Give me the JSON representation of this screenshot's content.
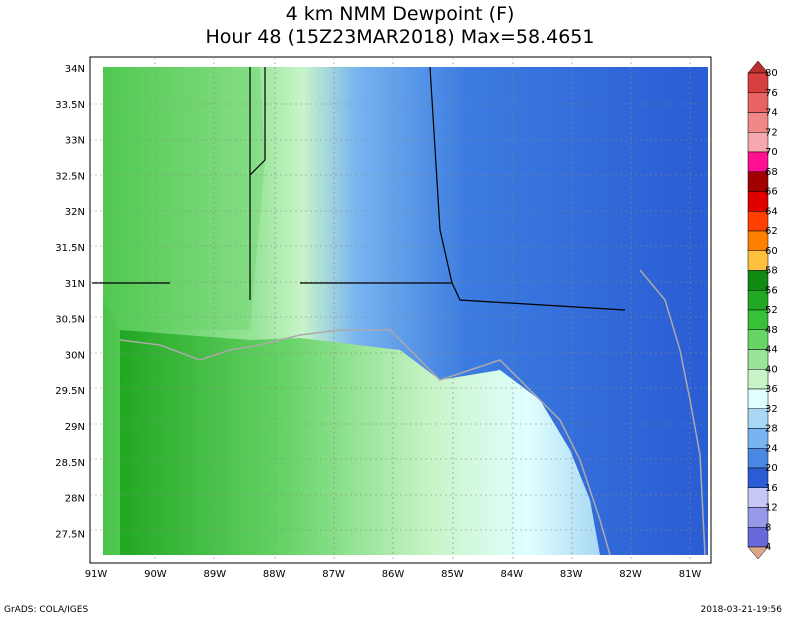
{
  "title": [
    "4 km NMM Dewpoint (F)",
    "Hour 48 (15Z23MAR2018) Max=58.4651"
  ],
  "lat_labels": [
    "34N",
    "33.5N",
    "33N",
    "32.5N",
    "32N",
    "31.5N",
    "31N",
    "30.5N",
    "30N",
    "29.5N",
    "29N",
    "28.5N",
    "28N",
    "27.5N"
  ],
  "lon_labels": [
    "91W",
    "90W",
    "89W",
    "88W",
    "87W",
    "86W",
    "85W",
    "84W",
    "83W",
    "82W",
    "81W"
  ],
  "colorbar": {
    "labels": [
      "80",
      "76",
      "74",
      "72",
      "70",
      "68",
      "66",
      "64",
      "62",
      "60",
      "58",
      "56",
      "52",
      "48",
      "44",
      "40",
      "36",
      "32",
      "28",
      "24",
      "20",
      "16",
      "12",
      "8",
      "4"
    ],
    "colors": [
      "#b8302e",
      "#d84040",
      "#e86464",
      "#f08888",
      "#f6a8b0",
      "#ff1090",
      "#a00000",
      "#e00000",
      "#ff4000",
      "#ff8000",
      "#ffc040",
      "#108a10",
      "#22a822",
      "#38c038",
      "#68d468",
      "#98e498",
      "#c8f4c8",
      "#e0ffff",
      "#a8d8f4",
      "#78b4f0",
      "#4a88e4",
      "#2a5cd4",
      "#c8c8f4",
      "#9898e8",
      "#6868d8",
      "#3c3cc0",
      "#2222a0",
      "#d8a888"
    ]
  },
  "footer": {
    "left": "GrADS: COLA/IGES",
    "right": "2018-03-21-19:56"
  }
}
